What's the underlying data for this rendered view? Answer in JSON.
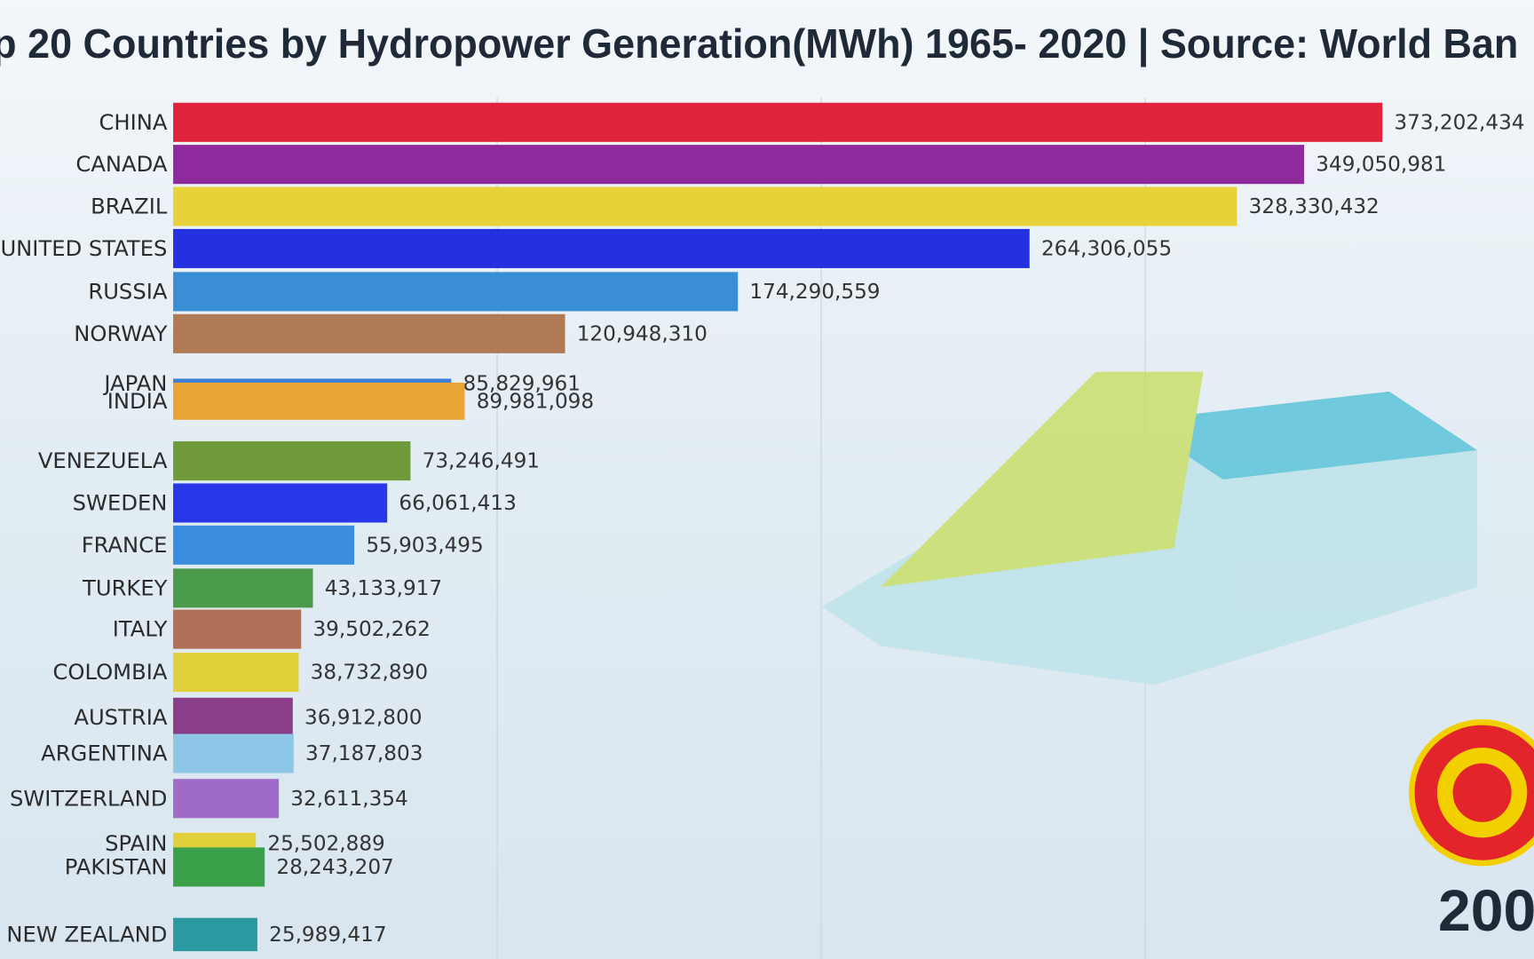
{
  "chart_data": {
    "type": "bar",
    "title": "p 20 Countries by Hydropower Generation(MWh) 1965- 2020 | Source: World Ban",
    "year": "200",
    "orientation": "horizontal",
    "categories": [
      "CHINA",
      "CANADA",
      "BRAZIL",
      "UNITED STATES",
      "RUSSIA",
      "NORWAY",
      "JAPAN",
      "INDIA",
      "VENEZUELA",
      "SWEDEN",
      "FRANCE",
      "TURKEY",
      "ITALY",
      "COLOMBIA",
      "AUSTRIA",
      "ARGENTINA",
      "SWITZERLAND",
      "SPAIN",
      "PAKISTAN",
      "NEW ZEALAND"
    ],
    "values": [
      373202434,
      349050981,
      328330432,
      264306055,
      174290559,
      120948310,
      85829961,
      89981098,
      73246491,
      66061413,
      55903495,
      43133917,
      39502262,
      38732890,
      36912800,
      37187803,
      32611354,
      25502889,
      28243207,
      25989417
    ],
    "value_labels": [
      "373,202,434",
      "349,050,981",
      "328,330,432",
      "264,306,055",
      "174,290,559",
      "120,948,310",
      "85,829,961",
      "89,981,098",
      "73,246,491",
      "66,061,413",
      "55,903,495",
      "43,133,917",
      "39,502,262",
      "38,732,890",
      "36,912,800",
      "37,187,803",
      "32,611,354",
      "25,502,889",
      "28,243,207",
      "25,989,417"
    ],
    "colors": [
      "#e0223a",
      "#8e2a9c",
      "#e8d23a",
      "#2431e0",
      "#3a8ed6",
      "#b07a55",
      "#3d7fd6",
      "#e8a535",
      "#6e9a3a",
      "#2837e8",
      "#3b8ede",
      "#4a9a4a",
      "#b0705a",
      "#e2d03a",
      "#8a3e8a",
      "#8ec6e8",
      "#a06ac8",
      "#e2d03a",
      "#3aa04a",
      "#2a9aa0"
    ],
    "xlim": [
      0,
      420000000
    ],
    "xticks": [
      100000000,
      200000000,
      300000000
    ],
    "grid": true
  }
}
